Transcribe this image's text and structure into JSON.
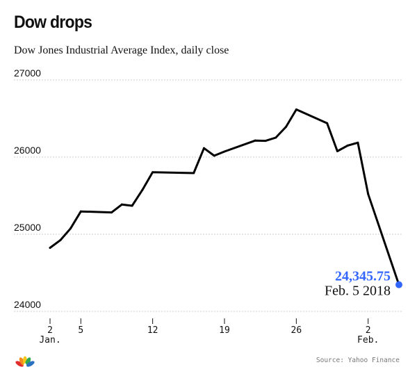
{
  "header": {
    "title": "Dow drops",
    "subtitle": "Dow Jones Industrial Average Index, daily close"
  },
  "footer": {
    "source": "Source: Yahoo Finance",
    "logo": "nbc-peacock-icon"
  },
  "colors": {
    "line": "#000000",
    "highlight": "#3366ff",
    "grid": "#cccccc",
    "logo": [
      "#e12d2d",
      "#f58d1e",
      "#f6c519",
      "#2fa84f",
      "#2a71c2",
      "#7a4fa3"
    ]
  },
  "chart_data": {
    "type": "line",
    "title": "Dow drops",
    "subtitle": "Dow Jones Industrial Average Index, daily close",
    "xlabel": "",
    "ylabel": "",
    "ylim": [
      24000,
      27000
    ],
    "xlim": [
      "2018-01-02",
      "2018-02-05"
    ],
    "y_ticks": [
      24000,
      25000,
      26000,
      27000
    ],
    "y_tick_labels": [
      "24000",
      "25000",
      "26000",
      "27000"
    ],
    "x_ticks": [
      {
        "date": "2018-01-02",
        "label": "2",
        "sublabel": "Jan."
      },
      {
        "date": "2018-01-05",
        "label": "5",
        "sublabel": ""
      },
      {
        "date": "2018-01-12",
        "label": "12",
        "sublabel": ""
      },
      {
        "date": "2018-01-19",
        "label": "19",
        "sublabel": ""
      },
      {
        "date": "2018-01-26",
        "label": "26",
        "sublabel": ""
      },
      {
        "date": "2018-02-02",
        "label": "2",
        "sublabel": "Feb."
      }
    ],
    "grid": true,
    "series": [
      {
        "x": [
          "2018-01-02",
          "2018-01-03",
          "2018-01-04",
          "2018-01-05",
          "2018-01-08",
          "2018-01-09",
          "2018-01-10",
          "2018-01-11",
          "2018-01-12",
          "2018-01-16",
          "2018-01-17",
          "2018-01-18",
          "2018-01-19",
          "2018-01-22",
          "2018-01-23",
          "2018-01-24",
          "2018-01-25",
          "2018-01-26",
          "2018-01-29",
          "2018-01-30",
          "2018-01-31",
          "2018-02-01",
          "2018-02-02",
          "2018-02-05"
        ],
        "y": [
          24824.01,
          24922.68,
          25075.13,
          25295.87,
          25283.0,
          25385.8,
          25369.13,
          25574.73,
          25803.19,
          25792.86,
          26115.65,
          26017.81,
          26071.72,
          26214.6,
          26210.81,
          26252.12,
          26392.79,
          26616.71,
          26439.48,
          26076.89,
          26149.39,
          26186.71,
          25520.96,
          24345.75
        ]
      }
    ],
    "annotation": {
      "date": "2018-02-05",
      "value_label": "24,345.75",
      "date_label": "Feb. 5 2018"
    }
  }
}
